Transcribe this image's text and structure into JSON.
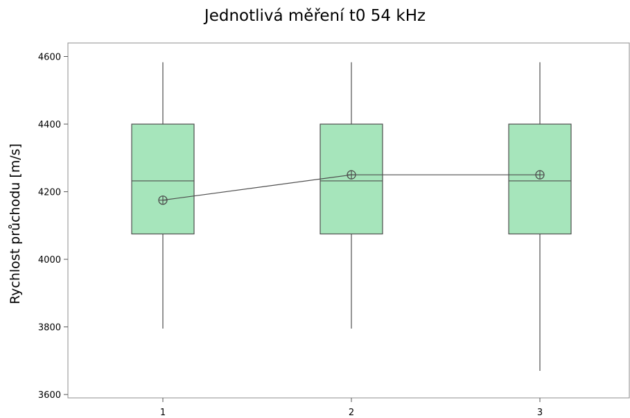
{
  "chart_data": {
    "type": "box",
    "title": "Jednotlivá měření t0 54 kHz",
    "xlabel": "",
    "ylabel": "Rychlost průchodu [m/s]",
    "categories": [
      "1",
      "2",
      "3"
    ],
    "ylim": [
      3590,
      4640
    ],
    "yticks": [
      3600,
      3800,
      4000,
      4200,
      4400,
      4600
    ],
    "boxes": [
      {
        "category": "1",
        "whisker_low": 3795,
        "q1": 4075,
        "median": 4232,
        "q3": 4400,
        "whisker_high": 4583,
        "mean": 4175
      },
      {
        "category": "2",
        "whisker_low": 3795,
        "q1": 4075,
        "median": 4232,
        "q3": 4400,
        "whisker_high": 4583,
        "mean": 4250
      },
      {
        "category": "3",
        "whisker_low": 3670,
        "q1": 4075,
        "median": 4232,
        "q3": 4400,
        "whisker_high": 4583,
        "mean": 4250
      }
    ],
    "mean_line": true,
    "grid": false,
    "colors": {
      "box_fill": "#a6e5bb",
      "box_stroke": "#4d4d4d",
      "line": "#4d4d4d"
    }
  }
}
